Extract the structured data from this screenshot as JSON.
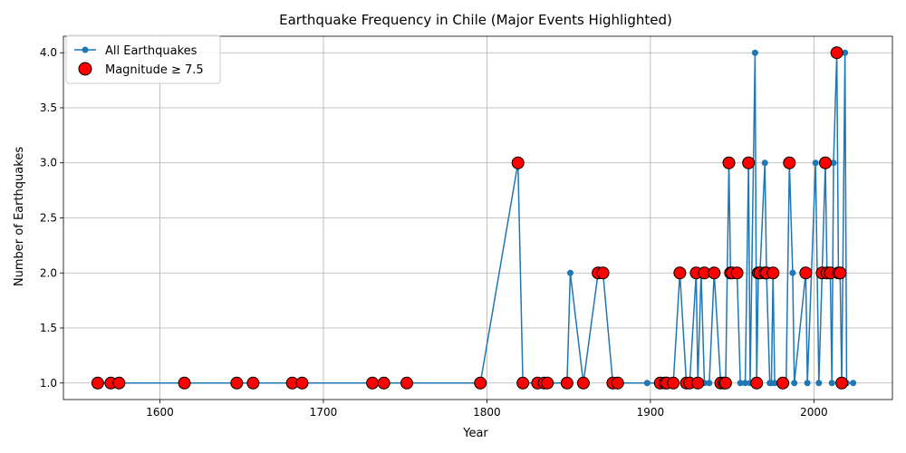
{
  "chart_data": {
    "type": "line",
    "title": "Earthquake Frequency in Chile (Major Events Highlighted)",
    "xlabel": "Year",
    "ylabel": "Number of Earthquakes",
    "xlim": [
      1541,
      2048
    ],
    "ylim": [
      0.85,
      4.15
    ],
    "x_ticks": [
      1600,
      1700,
      1800,
      1900,
      2000
    ],
    "x_tick_labels": [
      "1600",
      "1700",
      "1800",
      "1900",
      "2000"
    ],
    "y_ticks": [
      1.0,
      1.5,
      2.0,
      2.5,
      3.0,
      3.5,
      4.0
    ],
    "y_tick_labels": [
      "1.0",
      "1.5",
      "2.0",
      "2.5",
      "3.0",
      "3.5",
      "4.0"
    ],
    "grid": true,
    "legend_position": "top-left",
    "series": [
      {
        "name": "All Earthquakes",
        "color": "#1f77b4",
        "x": [
          1562,
          1570,
          1575,
          1615,
          1647,
          1657,
          1681,
          1687,
          1730,
          1737,
          1751,
          1796,
          1819,
          1822,
          1831,
          1835,
          1837,
          1849,
          1851,
          1859,
          1868,
          1871,
          1877,
          1878,
          1880,
          1898,
          1905,
          1906,
          1909,
          1910,
          1914,
          1918,
          1922,
          1924,
          1928,
          1929,
          1931,
          1933,
          1936,
          1939,
          1943,
          1945,
          1946,
          1948,
          1949,
          1950,
          1953,
          1955,
          1958,
          1960,
          1961,
          1964,
          1965,
          1966,
          1967,
          1970,
          1971,
          1973,
          1974,
          1975,
          1976,
          1981,
          1983,
          1985,
          1987,
          1988,
          1995,
          1996,
          2001,
          2003,
          2005,
          2007,
          2008,
          2010,
          2011,
          2012,
          2014,
          2015,
          2016,
          2017,
          2019,
          2020,
          2024
        ],
        "values": [
          1,
          1,
          1,
          1,
          1,
          1,
          1,
          1,
          1,
          1,
          1,
          1,
          3,
          1,
          1,
          1,
          1,
          1,
          2,
          1,
          2,
          2,
          1,
          1,
          1,
          1,
          1,
          1,
          1,
          1,
          1,
          2,
          1,
          1,
          2,
          1,
          2,
          1,
          1,
          2,
          1,
          1,
          1,
          3,
          2,
          2,
          2,
          1,
          1,
          3,
          1,
          4,
          1,
          2,
          2,
          3,
          2,
          1,
          1,
          2,
          1,
          1,
          1,
          3,
          2,
          1,
          2,
          1,
          3,
          1,
          2,
          3,
          2,
          2,
          1,
          3,
          4,
          2,
          2,
          1,
          4,
          1,
          1
        ]
      },
      {
        "name": "Magnitude ≥ 7.5",
        "color": "#ff0000",
        "edge_color": "#000000",
        "x": [
          1562,
          1570,
          1575,
          1615,
          1647,
          1657,
          1681,
          1687,
          1730,
          1737,
          1751,
          1796,
          1819,
          1822,
          1831,
          1835,
          1837,
          1849,
          1859,
          1868,
          1871,
          1877,
          1880,
          1906,
          1909,
          1910,
          1914,
          1918,
          1922,
          1924,
          1928,
          1929,
          1933,
          1939,
          1943,
          1945,
          1946,
          1948,
          1949,
          1950,
          1953,
          1960,
          1965,
          1966,
          1967,
          1970,
          1971,
          1975,
          1981,
          1985,
          1995,
          2005,
          2007,
          2008,
          2010,
          2014,
          2015,
          2016,
          2017
        ],
        "values": [
          1,
          1,
          1,
          1,
          1,
          1,
          1,
          1,
          1,
          1,
          1,
          1,
          3,
          1,
          1,
          1,
          1,
          1,
          1,
          2,
          2,
          1,
          1,
          1,
          1,
          1,
          1,
          2,
          1,
          1,
          2,
          1,
          2,
          2,
          1,
          1,
          1,
          3,
          2,
          2,
          2,
          3,
          1,
          2,
          2,
          2,
          2,
          2,
          1,
          3,
          2,
          2,
          3,
          2,
          2,
          4,
          2,
          2,
          1
        ]
      }
    ]
  }
}
